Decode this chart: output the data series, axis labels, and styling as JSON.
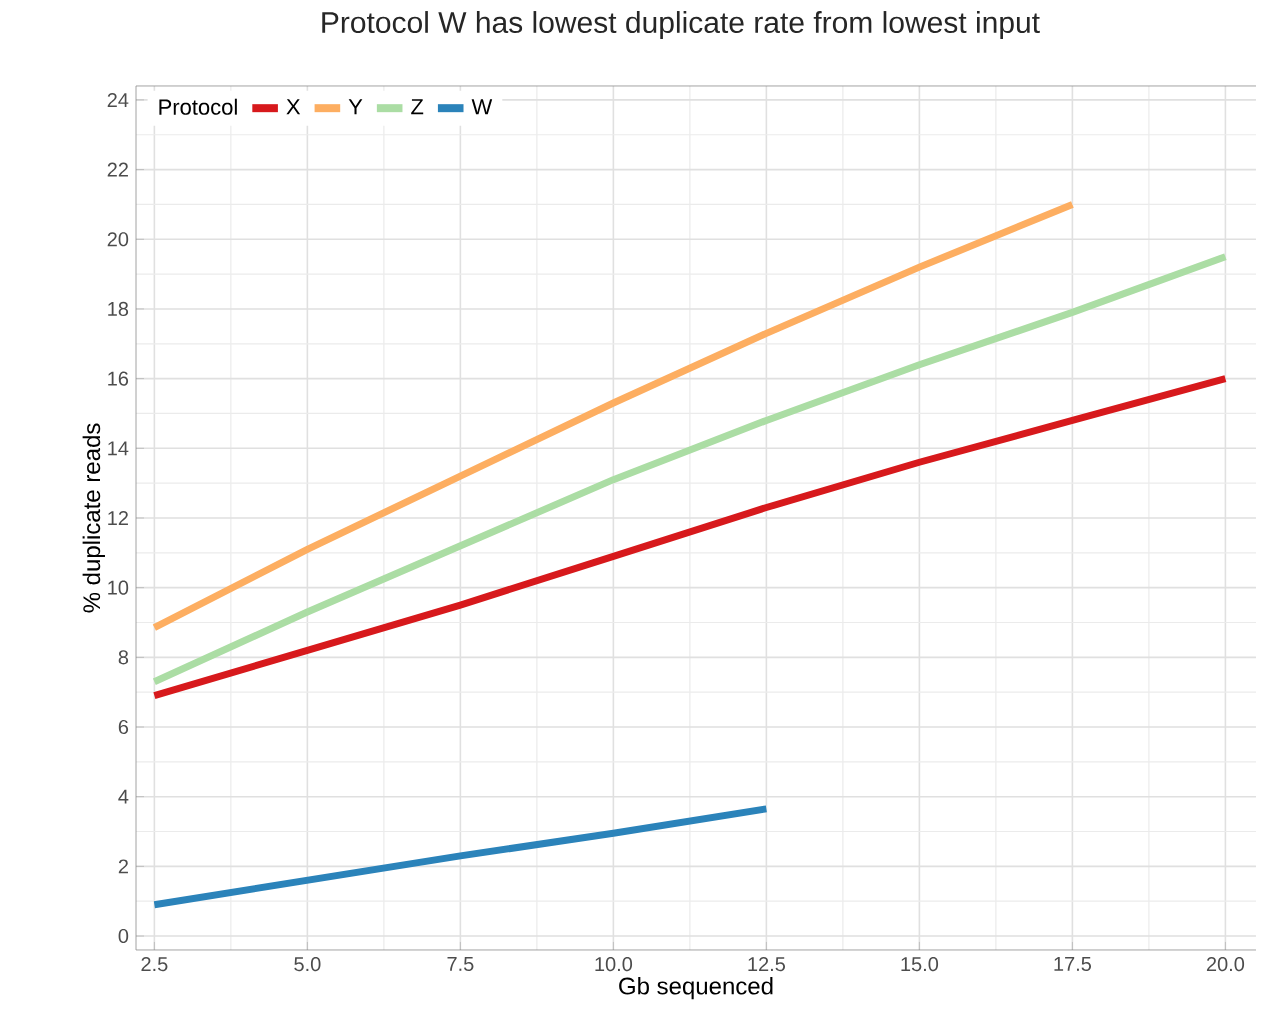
{
  "chart_data": {
    "type": "line",
    "title": "Protocol W has lowest duplicate rate from lowest input",
    "xlabel": "Gb sequenced",
    "ylabel": "% duplicate reads",
    "legend_title": "Protocol",
    "series": [
      {
        "name": "X",
        "color": "#d7191c",
        "x": [
          2.5,
          5,
          7.5,
          10,
          12.5,
          15,
          17.5,
          20
        ],
        "values": [
          6.9,
          8.2,
          9.5,
          10.9,
          12.3,
          13.6,
          14.8,
          16.0
        ]
      },
      {
        "name": "Y",
        "color": "#fdae61",
        "x": [
          2.5,
          5,
          7.5,
          10,
          12.5,
          15,
          17.5
        ],
        "values": [
          8.85,
          11.1,
          13.2,
          15.3,
          17.3,
          19.2,
          21.0
        ]
      },
      {
        "name": "Z",
        "color": "#abdda4",
        "x": [
          2.5,
          5,
          7.5,
          10,
          12.5,
          15,
          17.5,
          20
        ],
        "values": [
          7.3,
          9.3,
          11.2,
          13.1,
          14.8,
          16.4,
          17.9,
          19.5
        ]
      },
      {
        "name": "W",
        "color": "#2b83ba",
        "x": [
          2.5,
          5,
          7.5,
          10,
          12.5
        ],
        "values": [
          0.9,
          1.6,
          2.3,
          2.95,
          3.65
        ]
      }
    ],
    "xlim": [
      2.2,
      20.5
    ],
    "ylim": [
      -0.4,
      24.4
    ],
    "xticks": [
      {
        "value": 2.5,
        "label": "2.5"
      },
      {
        "value": 5,
        "label": "5.0"
      },
      {
        "value": 7.5,
        "label": "7.5"
      },
      {
        "value": 10,
        "label": "10.0"
      },
      {
        "value": 12.5,
        "label": "12.5"
      },
      {
        "value": 15,
        "label": "15.0"
      },
      {
        "value": 17.5,
        "label": "17.5"
      },
      {
        "value": 20,
        "label": "20.0"
      }
    ],
    "yticks": [
      0,
      2,
      4,
      6,
      8,
      10,
      12,
      14,
      16,
      18,
      20,
      22,
      24
    ],
    "grid": true,
    "legend": "top left",
    "marker": "none",
    "line_style": "solid"
  }
}
